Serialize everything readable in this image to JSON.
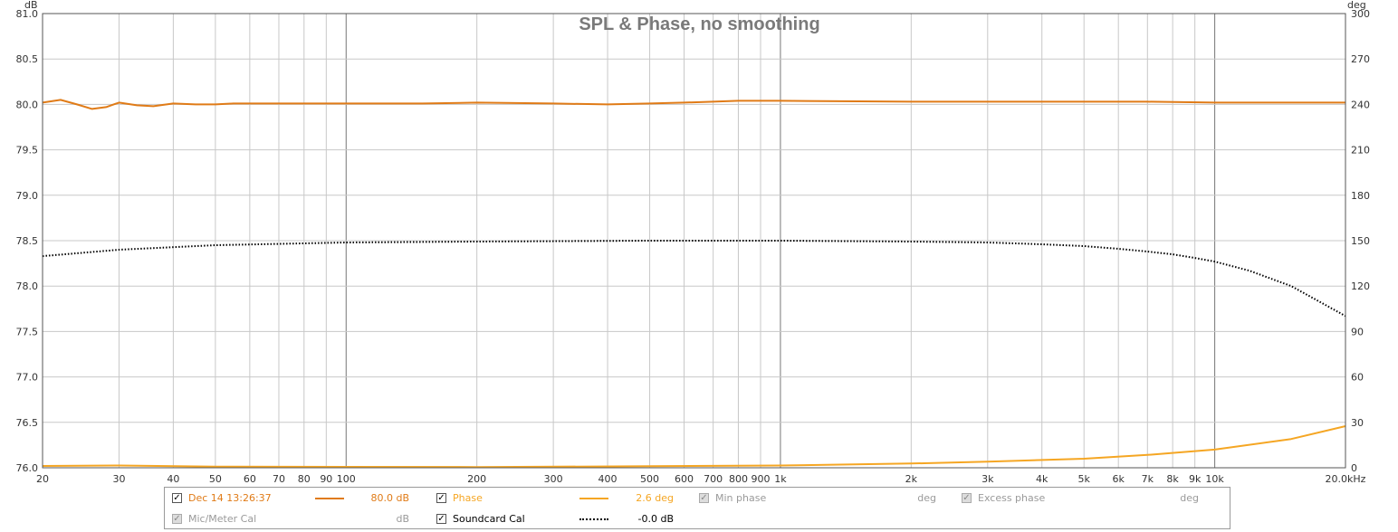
{
  "chart_data": {
    "type": "line",
    "title": "SPL & Phase, no smoothing",
    "x_scale": "log",
    "xlim": [
      20,
      20000
    ],
    "x_unit": "kHz",
    "x_ticks": [
      20,
      30,
      40,
      50,
      60,
      70,
      80,
      90,
      100,
      200,
      300,
      400,
      500,
      600,
      700,
      800,
      900,
      1000,
      2000,
      3000,
      4000,
      5000,
      6000,
      7000,
      8000,
      9000,
      10000,
      20000
    ],
    "x_tick_labels": [
      "20",
      "30",
      "40",
      "50",
      "60",
      "70",
      "80",
      "90",
      "100",
      "200",
      "300",
      "400",
      "500",
      "600",
      "700",
      "800",
      "900",
      "1k",
      "2k",
      "3k",
      "4k",
      "5k",
      "6k",
      "7k",
      "8k",
      "9k",
      "10k",
      "20.0kHz"
    ],
    "y_left": {
      "unit": "dB",
      "ylim": [
        76.0,
        81.0
      ],
      "ticks": [
        "76.0",
        "76.5",
        "77.0",
        "77.5",
        "78.0",
        "78.5",
        "79.0",
        "79.5",
        "80.0",
        "80.5",
        "81.0"
      ]
    },
    "y_right": {
      "unit": "deg",
      "ylim": [
        0,
        300
      ],
      "ticks": [
        "0",
        "30",
        "60",
        "90",
        "120",
        "150",
        "180",
        "210",
        "240",
        "270",
        "300"
      ]
    },
    "grid": true,
    "series": [
      {
        "name": "Dec 14 13:26:37",
        "axis": "left",
        "color": "#e07b17",
        "x": [
          20,
          22,
          24,
          26,
          28,
          30,
          33,
          36,
          40,
          45,
          50,
          55,
          60,
          80,
          100,
          150,
          200,
          300,
          400,
          500,
          600,
          700,
          800,
          900,
          1000,
          2000,
          3000,
          5000,
          7000,
          10000,
          15000,
          20000
        ],
        "y": [
          80.02,
          80.05,
          80.0,
          79.95,
          79.97,
          80.02,
          79.99,
          79.98,
          80.01,
          80.0,
          80.0,
          80.01,
          80.01,
          80.01,
          80.01,
          80.01,
          80.02,
          80.01,
          80.0,
          80.01,
          80.02,
          80.03,
          80.04,
          80.04,
          80.04,
          80.03,
          80.03,
          80.03,
          80.03,
          80.02,
          80.02,
          80.02
        ]
      },
      {
        "name": "Phase",
        "axis": "right",
        "color": "#f5a623",
        "x": [
          20,
          30,
          50,
          100,
          200,
          500,
          1000,
          2000,
          3000,
          5000,
          7000,
          10000,
          15000,
          20000
        ],
        "y": [
          1.2,
          1.5,
          0.8,
          0.6,
          0.5,
          1.0,
          1.5,
          2.8,
          4.0,
          6.0,
          8.5,
          12.0,
          19.0,
          27.5
        ]
      },
      {
        "name": "Soundcard Cal",
        "axis": "left",
        "color": "#000000",
        "style": "dotted",
        "x": [
          20,
          30,
          50,
          100,
          200,
          500,
          1000,
          2000,
          3000,
          4000,
          5000,
          6000,
          7000,
          8000,
          9000,
          10000,
          12000,
          15000,
          20000
        ],
        "y": [
          78.33,
          78.4,
          78.45,
          78.48,
          78.49,
          78.5,
          78.5,
          78.49,
          78.48,
          78.46,
          78.44,
          78.41,
          78.38,
          78.35,
          78.31,
          78.27,
          78.17,
          78.0,
          77.67
        ]
      }
    ]
  },
  "legend": {
    "rows": [
      [
        {
          "checked": true,
          "enabled": true,
          "name": "Dec 14 13:26:37",
          "color": "#e07b17",
          "style": "solid",
          "value": "80.0 dB"
        },
        {
          "checked": true,
          "enabled": true,
          "name": "Phase",
          "color": "#f5a623",
          "style": "solid",
          "value": "2.6 deg"
        },
        {
          "checked": true,
          "enabled": false,
          "name": "Min phase",
          "color": "",
          "style": "none",
          "value": "deg"
        },
        {
          "checked": true,
          "enabled": false,
          "name": "Excess phase",
          "color": "",
          "style": "none",
          "value": "deg"
        }
      ],
      [
        {
          "checked": true,
          "enabled": false,
          "name": "Mic/Meter Cal",
          "color": "",
          "style": "none",
          "value": "dB"
        },
        {
          "checked": true,
          "enabled": true,
          "name": "Soundcard Cal",
          "color": "#000000",
          "style": "dotted",
          "value": "-0.0 dB"
        }
      ]
    ]
  }
}
